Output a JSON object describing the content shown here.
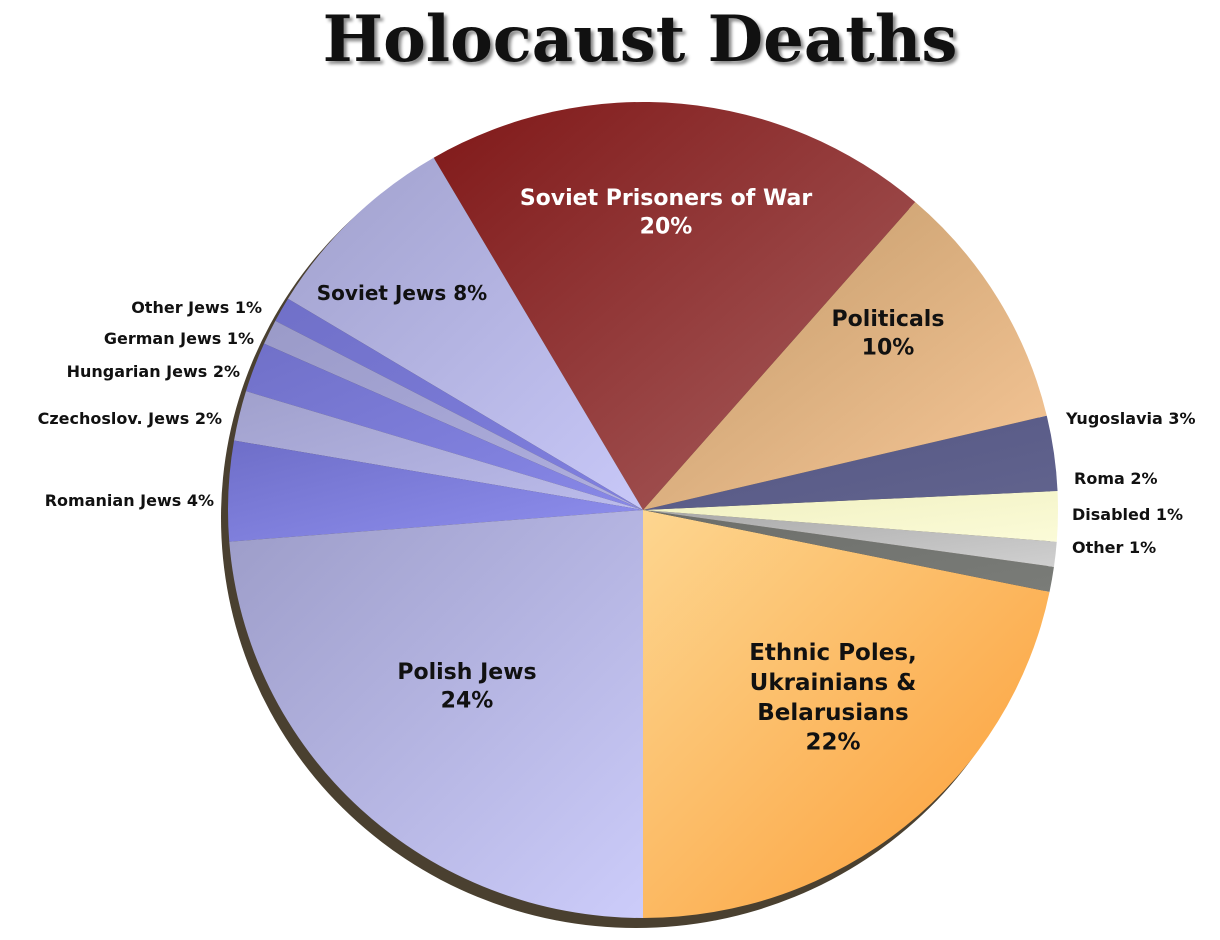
{
  "chart_data": {
    "type": "pie",
    "title": "Holocaust Deaths",
    "start": "bottom",
    "direction": "counterclockwise",
    "slices": [
      {
        "label": "Ethnic Poles, Ukrainians & Belarusians",
        "lines": [
          "Ethnic Poles,",
          "Ukrainians &",
          "Belarusians",
          "22%"
        ],
        "value": 22,
        "colors": [
          "#fdd690",
          "#fb9c34"
        ]
      },
      {
        "label": "Other",
        "lines": [
          "Other 1%"
        ],
        "value": 1,
        "colors": [
          "#6c6e6a",
          "#7a7c78"
        ]
      },
      {
        "label": "Disabled",
        "lines": [
          "Disabled 1%"
        ],
        "value": 1,
        "colors": [
          "#a8a8a8",
          "#d0d0d0"
        ]
      },
      {
        "label": "Roma",
        "lines": [
          "Roma 2%"
        ],
        "value": 2,
        "colors": [
          "#f0f0c0",
          "#fbfbd8"
        ]
      },
      {
        "label": "Yugoslavia",
        "lines": [
          "Yugoslavia 3%"
        ],
        "value": 3,
        "colors": [
          "#545684",
          "#62648e"
        ]
      },
      {
        "label": "Politicals",
        "lines": [
          "Politicals",
          "10%"
        ],
        "value": 10,
        "colors": [
          "#c09868",
          "#f8c898"
        ]
      },
      {
        "label": "Soviet Prisoners of War",
        "lines": [
          "Soviet Prisoners of War",
          "20%"
        ],
        "value": 20,
        "colors": [
          "#801818",
          "#a86060"
        ]
      },
      {
        "label": "Soviet Jews",
        "lines": [
          "Soviet Jews 8%"
        ],
        "value": 8,
        "colors": [
          "#a0a0cc",
          "#c8c8f8"
        ]
      },
      {
        "label": "Other Jews",
        "lines": [
          "Other Jews 1%"
        ],
        "value": 1,
        "colors": [
          "#7070c8",
          "#8080e0"
        ]
      },
      {
        "label": "German Jews",
        "lines": [
          "German Jews 1%"
        ],
        "value": 1,
        "colors": [
          "#9a9ac8",
          "#b0b0e0"
        ]
      },
      {
        "label": "Hungarian Jews",
        "lines": [
          "Hungarian Jews 2%"
        ],
        "value": 2,
        "colors": [
          "#7070c8",
          "#8888e8"
        ]
      },
      {
        "label": "Czechoslov. Jews",
        "lines": [
          "Czechoslov. Jews 2%"
        ],
        "value": 2,
        "colors": [
          "#a0a0cc",
          "#bcbcec"
        ]
      },
      {
        "label": "Romanian Jews",
        "lines": [
          "Romanian Jews 4%"
        ],
        "value": 4,
        "colors": [
          "#6e6ec8",
          "#9090f0"
        ]
      },
      {
        "label": "Polish Jews",
        "lines": [
          "Polish Jews",
          "24%"
        ],
        "value": 24,
        "colors": [
          "#9c9cc8",
          "#ccccfa"
        ]
      }
    ]
  }
}
